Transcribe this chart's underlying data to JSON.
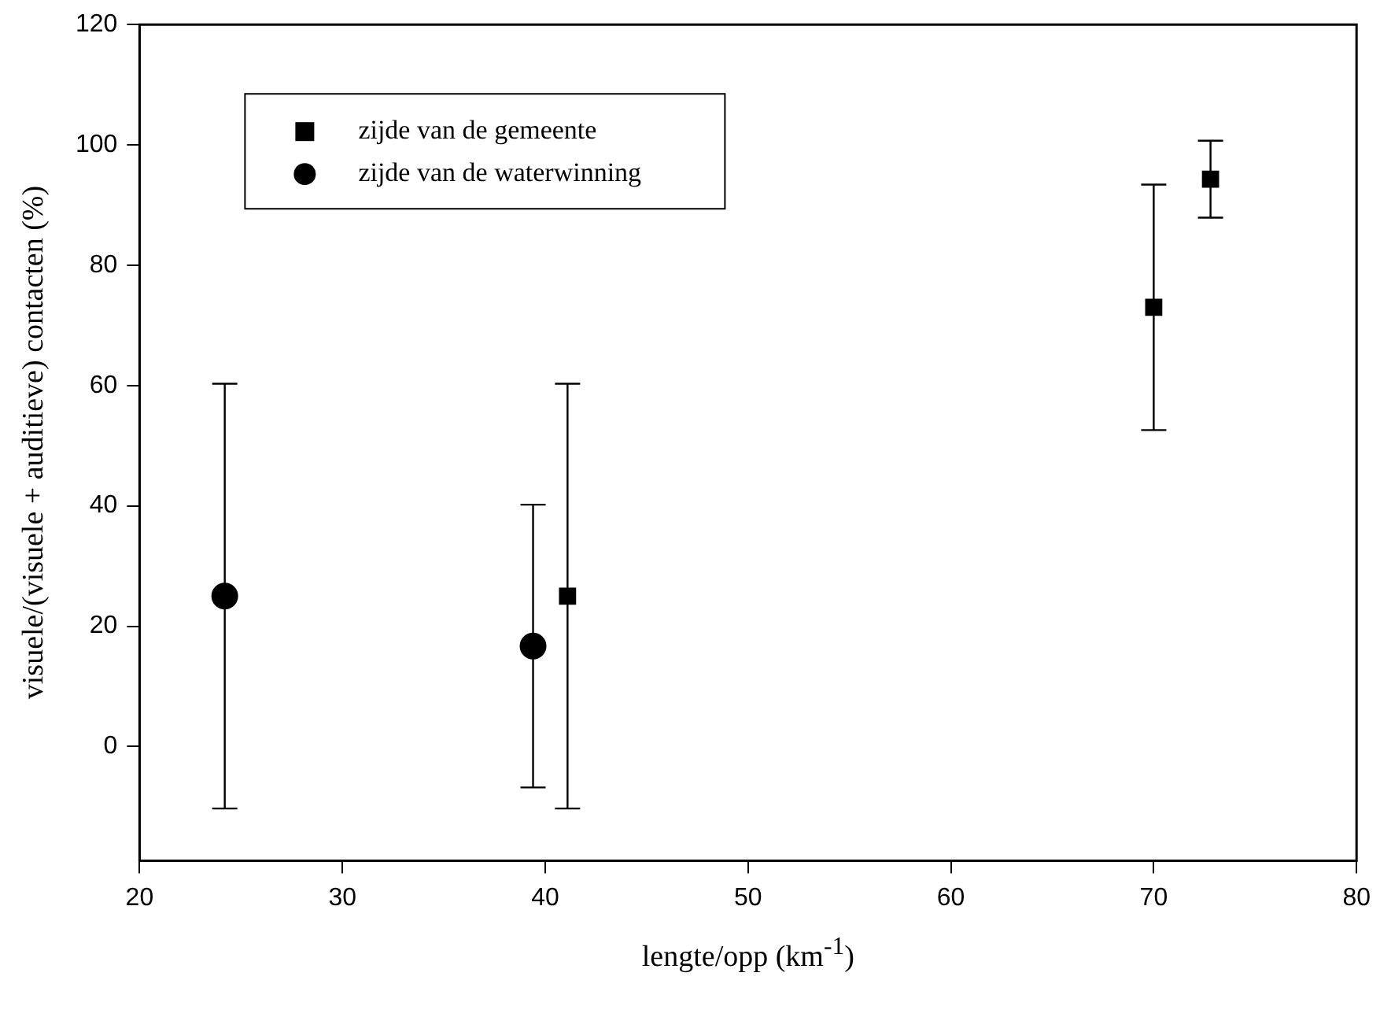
{
  "chart_data": {
    "type": "scatter",
    "xlabel": "lengte/opp (km$^{-1}$)",
    "ylabel": "visuele/(visuele + auditieve) contacten (%)",
    "xlim": [
      20,
      80
    ],
    "xticks": [
      20,
      30,
      40,
      50,
      60,
      70,
      80
    ],
    "ylim": [
      -19,
      120
    ],
    "yticks": [
      0,
      20,
      40,
      60,
      80,
      100,
      120
    ],
    "grid": false,
    "legend": "top left",
    "series": [
      {
        "name": "zijde van de gemeente",
        "color": "#000000",
        "marker": "square",
        "x": [
          41.1,
          70.0,
          72.8
        ],
        "values": [
          25,
          73,
          94.3
        ],
        "errors": [
          35.3,
          20.4,
          6.4
        ]
      },
      {
        "name": "zijde van de waterwinning",
        "color": "#000000",
        "marker": "circle",
        "x": [
          24.2,
          39.4
        ],
        "values": [
          25,
          16.7
        ],
        "errors": [
          35.3,
          23.5
        ]
      }
    ]
  }
}
